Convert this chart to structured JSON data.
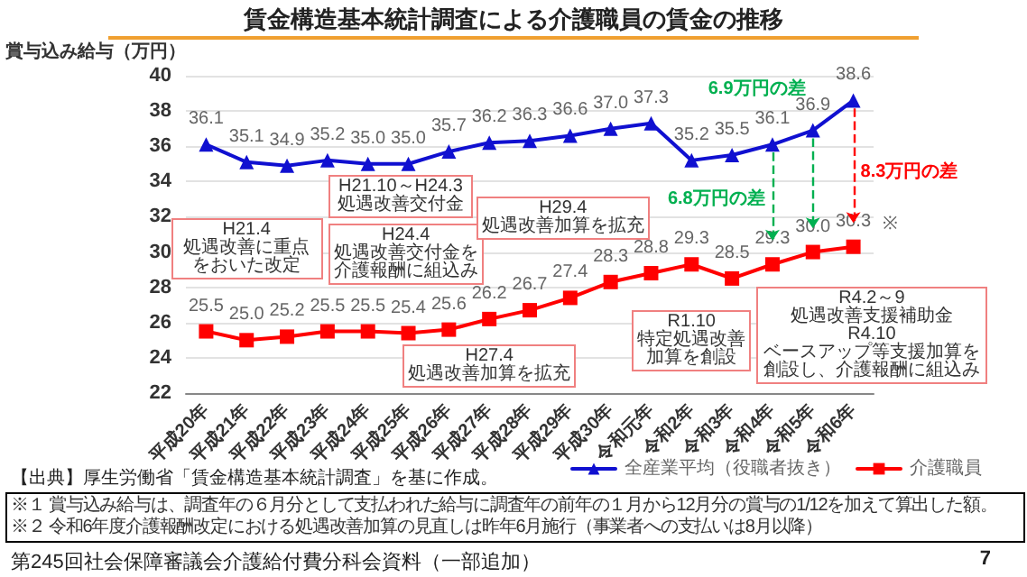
{
  "chart_data": {
    "type": "line",
    "title": "賃金構造基本統計調査による介護職員の賃金の推移",
    "ylabel": "賞与込み給与（万円）",
    "categories": [
      "平成20年",
      "平成21年",
      "平成22年",
      "平成23年",
      "平成24年",
      "平成25年",
      "平成26年",
      "平成27年",
      "平成28年",
      "平成29年",
      "平成30年",
      "令和元年",
      "令和2年",
      "令和3年",
      "令和4年",
      "令和5年",
      "令和6年"
    ],
    "series": [
      {
        "name": "全産業平均（役職者抜き）",
        "color": "#1010d0",
        "marker": "triangle",
        "values": [
          36.1,
          35.1,
          34.9,
          35.2,
          35.0,
          35.0,
          35.7,
          36.2,
          36.3,
          36.6,
          37.0,
          37.3,
          35.2,
          35.5,
          36.1,
          36.9,
          38.6
        ],
        "value_labels": [
          "36.1",
          "35.1",
          "34.9",
          "35.2",
          "35.0",
          "35.0",
          "35.7",
          "36.2",
          "36.3",
          "36.6",
          "37.0",
          "37.3",
          "35.2",
          "35.5",
          "36.1",
          "36.9",
          "38.6"
        ]
      },
      {
        "name": "介護職員",
        "color": "#ff0000",
        "marker": "square",
        "values": [
          25.5,
          25.0,
          25.2,
          25.5,
          25.5,
          25.4,
          25.6,
          26.2,
          26.7,
          27.4,
          28.3,
          28.8,
          29.3,
          28.5,
          29.3,
          30.0,
          30.3
        ],
        "value_labels": [
          "25.5",
          "25.0",
          "25.2",
          "25.5",
          "25.5",
          "25.4",
          "25.6",
          "26.2",
          "26.7",
          "27.4",
          "28.3",
          "28.8",
          "29.3",
          "28.5",
          "29.3",
          "30.0",
          "30.3"
        ]
      }
    ],
    "ylim": [
      22,
      40
    ],
    "yticks": [
      22,
      24,
      26,
      28,
      30,
      32,
      34,
      36,
      38,
      40
    ],
    "grid": "y",
    "legend": "bottom",
    "annotations": [
      "H21.4\n処遇改善に重点をおいた改定",
      "H21.10～H24.3\n処遇改善交付金",
      "H24.4\n処遇改善交付金を介護報酬に組込み",
      "H27.4\n処遇改善加算を拡充",
      "H29.4\n処遇改善加算を拡充",
      "R1.10\n特定処遇改善加算を創設",
      "R4.2～9\n処遇改善支援補助金\nR4.10\nベースアップ等支援加算を創設し、介護報酬に組込み",
      "6.8万円の差",
      "6.9万円の差",
      "8.3万円の差",
      "※",
      "【出典】厚生労働省「賃金構造基本統計調査」を基に作成。",
      "※１ 賞与込み給与は、調査年の６月分として支払われた給与に調査年の前年の１月から12月分の賞与の1/12を加えて算出した額。",
      "※２ 令和6年度介護報酬改定における処遇改善加算の見直しは昨年6月施行（事業者への支払いは8月以降）",
      "第245回社会保障審議会介護給付費分科会資料（一部追加）",
      "7"
    ]
  }
}
